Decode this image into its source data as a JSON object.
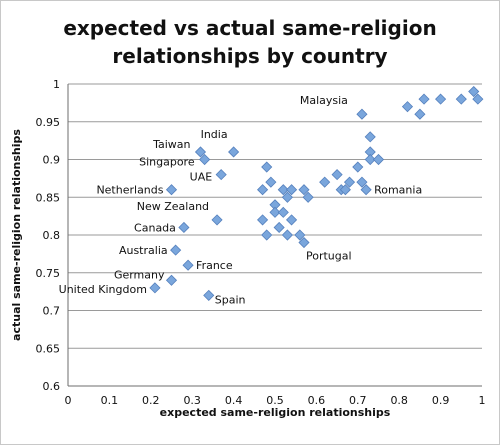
{
  "chart_data": {
    "type": "scatter",
    "title_line1": "expected vs actual same-religion",
    "title_line2": "relationships by country",
    "xlabel": "expected same-religion relationships",
    "ylabel": "actual same-religion relationships",
    "xlim": [
      0,
      1
    ],
    "ylim": [
      0.6,
      1.0
    ],
    "x_ticks": [
      "0",
      "0.1",
      "0.2",
      "0.3",
      "0.4",
      "0.5",
      "0.6",
      "0.7",
      "0.8",
      "0.9",
      "1"
    ],
    "y_ticks": [
      "0.6",
      "0.65",
      "0.7",
      "0.75",
      "0.8",
      "0.85",
      "0.9",
      "0.95",
      "1"
    ],
    "grid": true,
    "marker": "diamond",
    "marker_color": "#7aa6dc",
    "marker_edge": "#5580bd",
    "points": [
      {
        "x": 0.21,
        "y": 0.73,
        "label": "United Kingdom"
      },
      {
        "x": 0.25,
        "y": 0.74,
        "label": "Germany"
      },
      {
        "x": 0.26,
        "y": 0.78,
        "label": "Australia"
      },
      {
        "x": 0.28,
        "y": 0.81,
        "label": "Canada"
      },
      {
        "x": 0.29,
        "y": 0.76,
        "label": "France"
      },
      {
        "x": 0.34,
        "y": 0.72,
        "label": "Spain"
      },
      {
        "x": 0.25,
        "y": 0.86,
        "label": "Netherlands"
      },
      {
        "x": 0.32,
        "y": 0.91,
        "label": "Taiwan"
      },
      {
        "x": 0.33,
        "y": 0.9,
        "label": "Singapore"
      },
      {
        "x": 0.37,
        "y": 0.88,
        "label": "UAE"
      },
      {
        "x": 0.36,
        "y": 0.82,
        "label": "New Zealand"
      },
      {
        "x": 0.4,
        "y": 0.91,
        "label": "India"
      },
      {
        "x": 0.57,
        "y": 0.79,
        "label": "Portugal"
      },
      {
        "x": 0.71,
        "y": 0.96,
        "label": "Malaysia"
      },
      {
        "x": 0.72,
        "y": 0.86,
        "label": "Romania"
      },
      {
        "x": 0.47,
        "y": 0.82,
        "label": ""
      },
      {
        "x": 0.48,
        "y": 0.8,
        "label": ""
      },
      {
        "x": 0.47,
        "y": 0.86,
        "label": ""
      },
      {
        "x": 0.48,
        "y": 0.89,
        "label": ""
      },
      {
        "x": 0.49,
        "y": 0.87,
        "label": ""
      },
      {
        "x": 0.5,
        "y": 0.84,
        "label": ""
      },
      {
        "x": 0.5,
        "y": 0.83,
        "label": ""
      },
      {
        "x": 0.51,
        "y": 0.81,
        "label": ""
      },
      {
        "x": 0.52,
        "y": 0.86,
        "label": ""
      },
      {
        "x": 0.52,
        "y": 0.83,
        "label": ""
      },
      {
        "x": 0.53,
        "y": 0.85,
        "label": ""
      },
      {
        "x": 0.53,
        "y": 0.8,
        "label": ""
      },
      {
        "x": 0.54,
        "y": 0.86,
        "label": ""
      },
      {
        "x": 0.54,
        "y": 0.82,
        "label": ""
      },
      {
        "x": 0.56,
        "y": 0.8,
        "label": ""
      },
      {
        "x": 0.57,
        "y": 0.86,
        "label": ""
      },
      {
        "x": 0.58,
        "y": 0.85,
        "label": ""
      },
      {
        "x": 0.62,
        "y": 0.87,
        "label": ""
      },
      {
        "x": 0.65,
        "y": 0.88,
        "label": ""
      },
      {
        "x": 0.66,
        "y": 0.86,
        "label": ""
      },
      {
        "x": 0.67,
        "y": 0.86,
        "label": ""
      },
      {
        "x": 0.68,
        "y": 0.87,
        "label": ""
      },
      {
        "x": 0.7,
        "y": 0.89,
        "label": ""
      },
      {
        "x": 0.71,
        "y": 0.87,
        "label": ""
      },
      {
        "x": 0.73,
        "y": 0.93,
        "label": ""
      },
      {
        "x": 0.73,
        "y": 0.91,
        "label": ""
      },
      {
        "x": 0.73,
        "y": 0.9,
        "label": ""
      },
      {
        "x": 0.75,
        "y": 0.9,
        "label": ""
      },
      {
        "x": 0.82,
        "y": 0.97,
        "label": ""
      },
      {
        "x": 0.85,
        "y": 0.96,
        "label": ""
      },
      {
        "x": 0.86,
        "y": 0.98,
        "label": ""
      },
      {
        "x": 0.9,
        "y": 0.98,
        "label": ""
      },
      {
        "x": 0.95,
        "y": 0.98,
        "label": ""
      },
      {
        "x": 0.98,
        "y": 0.99,
        "label": ""
      },
      {
        "x": 0.99,
        "y": 0.98,
        "label": ""
      }
    ]
  }
}
